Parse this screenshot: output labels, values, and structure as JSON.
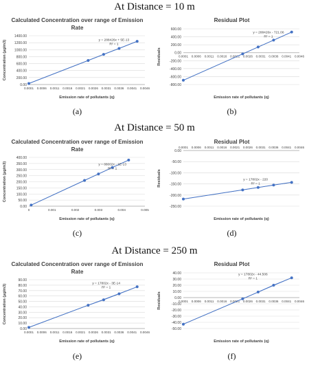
{
  "sections": [
    {
      "label": "At Distance = 10 m"
    },
    {
      "label": "At Distance = 50 m"
    },
    {
      "label": "At Distance = 250 m"
    }
  ],
  "panel_labels": [
    "(a)",
    "(b)",
    "(c)",
    "(d)",
    "(e)",
    "(f)"
  ],
  "colors": {
    "series": "#4472c4",
    "grid": "#d9d9d9",
    "axis": "#a6a6a6",
    "text": "#404040"
  },
  "chart_data": [
    {
      "type": "scatter",
      "title": [
        "Calculated Concentration over range of Emission",
        "Rate"
      ],
      "xlabel": "Emission rate of pollutants (q)",
      "ylabel": "Concentration (µg/m3)",
      "xlim": [
        0.0001,
        0.0046
      ],
      "ylim": [
        0,
        1400
      ],
      "x_ticks": [
        "0.0001",
        "0.0006",
        "0.0011",
        "0.0016",
        "0.0021",
        "0.0026",
        "0.0031",
        "0.0036",
        "0.0041",
        "0.0046"
      ],
      "y_ticks": [
        "0.00",
        "200.00",
        "400.00",
        "600.00",
        "800.00",
        "1000.00",
        "1200.00",
        "1400.00"
      ],
      "series": [
        {
          "x": [
            0.0001,
            0.0024,
            0.003,
            0.0036,
            0.0043
          ],
          "y": [
            30,
            690,
            865,
            1035,
            1240
          ]
        }
      ],
      "trendline": {
        "x": [
          0.0001,
          0.0043
        ],
        "y": [
          30,
          1240
        ]
      },
      "equation": "y = 288426x + 5E-13",
      "r2": "R² = 1",
      "label_at": [
        0.0034,
        1250
      ]
    },
    {
      "type": "scatter",
      "title": [
        "Residual Plot"
      ],
      "xlabel": "Emission rate of pollutants (q)",
      "ylabel": "Residuals",
      "xlim": [
        0.0001,
        0.0046
      ],
      "ylim": [
        -800,
        600
      ],
      "x_ticks": [
        "0.0001",
        "0.0006",
        "0.0011",
        "0.0016",
        "0.0021",
        "0.0026",
        "0.0031",
        "0.0036",
        "0.0041",
        "0.0046"
      ],
      "y_ticks": [
        "-800.00",
        "-600.00",
        "-400.00",
        "-200.00",
        "0.00",
        "200.00",
        "400.00",
        "600.00"
      ],
      "x_axis_at": 0,
      "series": [
        {
          "x": [
            0.0001,
            0.0024,
            0.003,
            0.0036,
            0.0043
          ],
          "y": [
            -692,
            -29,
            144,
            317,
            519
          ]
        }
      ],
      "trendline": {
        "x": [
          0.0001,
          0.0043
        ],
        "y": [
          -692,
          519
        ]
      },
      "equation": "y = 288426x - 721.06",
      "r2": "R² = 1",
      "label_at": [
        0.0034,
        490
      ]
    },
    {
      "type": "scatter",
      "title": [
        "Calculated Concentration over range of Emission",
        "Rate"
      ],
      "xlabel": "Emission rate of pollutants (q)",
      "ylabel": "Concentration (µg/m3)",
      "xlim": [
        0,
        0.005
      ],
      "ylim": [
        0,
        400
      ],
      "x_ticks": [
        "0",
        "0.001",
        "0.002",
        "0.003",
        "0.004",
        "0.005"
      ],
      "y_ticks": [
        "0.00",
        "50.00",
        "100.00",
        "150.00",
        "200.00",
        "250.00",
        "300.00",
        "350.00",
        "400.00"
      ],
      "series": [
        {
          "x": [
            0.0001,
            0.0024,
            0.003,
            0.0036,
            0.0043
          ],
          "y": [
            9,
            211,
            264,
            317,
            378
          ]
        }
      ],
      "trendline": {
        "x": [
          0.0001,
          0.0043
        ],
        "y": [
          9,
          378
        ]
      },
      "equation": "y = 88002x - 1E-13",
      "r2": "R² = 1",
      "label_at": [
        0.0036,
        335
      ]
    },
    {
      "type": "scatter",
      "title": [
        "Residual Plot"
      ],
      "xlabel": "Emission rate of pollutants (q)",
      "ylabel": "Residuals",
      "xlim": [
        0.0001,
        0.0046
      ],
      "ylim": [
        -250,
        0
      ],
      "x_ticks": [
        "0.0001",
        "0.0006",
        "0.0011",
        "0.0016",
        "0.0021",
        "0.0026",
        "0.0031",
        "0.0036",
        "0.0041",
        "0.0046"
      ],
      "y_ticks": [
        "-250.00",
        "-200.00",
        "-150.00",
        "-100.00",
        "-50.00",
        "0.00"
      ],
      "x_axis_at": 0,
      "x_ticks_top": true,
      "series": [
        {
          "x": [
            0.0001,
            0.0024,
            0.003,
            0.0036,
            0.0043
          ],
          "y": [
            -218,
            -177,
            -166,
            -155,
            -143
          ]
        }
      ],
      "trendline": {
        "x": [
          0.0001,
          0.0043
        ],
        "y": [
          -218,
          -143
        ]
      },
      "equation": "y = 17802x - 220",
      "r2": "R² = 1",
      "label_at": [
        0.0029,
        -135
      ]
    },
    {
      "type": "scatter",
      "title": [
        "Calculated Concentration over range of Emission",
        "Rate"
      ],
      "xlabel": "Emission rate of pollutants (q)",
      "ylabel": "Concentration (µg/m3)",
      "xlim": [
        0.0001,
        0.0046
      ],
      "ylim": [
        0,
        90
      ],
      "x_ticks": [
        "0.0001",
        "0.0006",
        "0.0011",
        "0.0016",
        "0.0021",
        "0.0026",
        "0.0031",
        "0.0036",
        "0.0041",
        "0.0046"
      ],
      "y_ticks": [
        "0.00",
        "10.00",
        "20.00",
        "30.00",
        "40.00",
        "50.00",
        "60.00",
        "70.00",
        "80.00",
        "90.00"
      ],
      "series": [
        {
          "x": [
            0.0001,
            0.0024,
            0.003,
            0.0036,
            0.0043
          ],
          "y": [
            2,
            43,
            53,
            64,
            77
          ]
        }
      ],
      "trendline": {
        "x": [
          0.0001,
          0.0043
        ],
        "y": [
          2,
          77
        ]
      },
      "equation": "y = 17802x - 3E-14",
      "r2": "R² = 1",
      "label_at": [
        0.0031,
        82
      ]
    },
    {
      "type": "scatter",
      "title": [
        "Residual Plot"
      ],
      "xlabel": "Emission rate of pollutants (q)",
      "ylabel": "Residuals",
      "xlim": [
        0.0001,
        0.0046
      ],
      "ylim": [
        -50,
        40
      ],
      "x_ticks": [
        "0.0001",
        "0.0006",
        "0.0011",
        "0.0016",
        "0.0021",
        "0.0026",
        "0.0031",
        "0.0036",
        "0.0041",
        "0.0046"
      ],
      "y_ticks": [
        "-50.00",
        "-40.00",
        "-30.00",
        "-20.00",
        "-10.00",
        "0.00",
        "10.00",
        "20.00",
        "30.00",
        "40.00"
      ],
      "x_axis_at": 0,
      "series": [
        {
          "x": [
            0.0001,
            0.0024,
            0.003,
            0.0036,
            0.0043
          ],
          "y": [
            -43,
            -2,
            9,
            20,
            32
          ]
        }
      ],
      "trendline": {
        "x": [
          0.0001,
          0.0043
        ],
        "y": [
          -43,
          32
        ]
      },
      "equation": "y = 17802x - 44.506",
      "r2": "R² = 1",
      "label_at": [
        0.0028,
        36
      ]
    }
  ]
}
